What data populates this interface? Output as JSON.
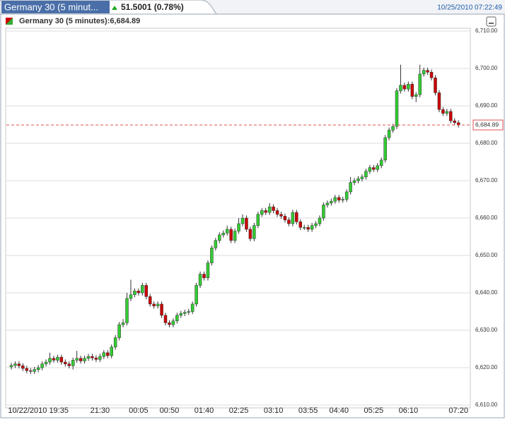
{
  "header": {
    "tab_title": "Germany 30 (5 minut...",
    "change": "51.5001 (0.78%)",
    "timestamp": "10/25/2010 07:22:49"
  },
  "chart_data": {
    "type": "candlestick",
    "title": "Germany 30 (5 minutes):6,684.89",
    "categories": [
      null,
      null,
      null,
      null,
      null,
      null,
      null,
      "10/22/2010 19:35",
      null,
      null,
      null,
      null,
      null,
      null,
      null,
      null,
      null,
      null,
      null,
      null,
      null,
      null,
      null,
      "21:30",
      null,
      null,
      null,
      null,
      null,
      null,
      null,
      null,
      null,
      "00:05",
      null,
      null,
      null,
      null,
      null,
      null,
      null,
      "00:50",
      null,
      null,
      null,
      null,
      null,
      null,
      null,
      null,
      "01:40",
      null,
      null,
      null,
      null,
      null,
      null,
      null,
      null,
      "02:25",
      null,
      null,
      null,
      null,
      null,
      null,
      null,
      null,
      "03:10",
      null,
      null,
      null,
      null,
      null,
      null,
      null,
      null,
      "03:55",
      null,
      null,
      null,
      null,
      null,
      null,
      null,
      "04:40",
      null,
      null,
      null,
      null,
      null,
      null,
      null,
      null,
      "05:25",
      null,
      null,
      null,
      null,
      null,
      null,
      null,
      null,
      "06:10",
      null,
      null,
      null,
      null,
      null,
      null,
      null,
      null,
      null,
      null,
      null,
      null,
      "07:20"
    ],
    "open": [
      6620.2,
      6620.6,
      6621.0,
      6620.5,
      6619.8,
      6619.2,
      6619.0,
      6619.5,
      6620.0,
      6621.0,
      6621.5,
      6622.5,
      6622.0,
      6622.8,
      6621.5,
      6621.0,
      6620.5,
      6622.0,
      6622.5,
      6621.8,
      6622.5,
      6623.0,
      6622.6,
      6622.2,
      6623.0,
      6624.0,
      6623.2,
      6625.5,
      6628.0,
      6631.5,
      6632.0,
      6638.5,
      6639.5,
      6640.5,
      6640.0,
      6642.0,
      6639.0,
      6637.0,
      6636.5,
      6637.0,
      6634.0,
      6632.0,
      6631.5,
      6632.5,
      6634.0,
      6634.5,
      6634.8,
      6635.0,
      6637.0,
      6642.0,
      6645.0,
      6644.0,
      6648.0,
      6652.0,
      6654.0,
      6655.5,
      6656.0,
      6657.0,
      6654.0,
      6656.5,
      6658.5,
      6660.0,
      6657.0,
      6654.5,
      6658.0,
      6661.0,
      6662.0,
      6661.5,
      6663.0,
      6662.0,
      6661.0,
      6660.5,
      6659.5,
      6658.5,
      6661.5,
      6659.0,
      6657.5,
      6657.5,
      6657.0,
      6658.0,
      6658.5,
      6660.0,
      6663.5,
      6664.0,
      6664.5,
      6665.5,
      6664.8,
      6665.0,
      6667.0,
      6669.5,
      6670.0,
      6670.5,
      6671.0,
      6672.5,
      6673.5,
      6673.0,
      6674.0,
      6675.5,
      6681.5,
      6683.5,
      6684.5,
      6694.0,
      6695.5,
      6694.5,
      6695.8,
      6692.5,
      6693.0,
      6698.5,
      6699.5,
      6699.0,
      6697.5,
      6693.5,
      6689.0,
      6688.0,
      6688.5,
      6686.0,
      6685.5
    ],
    "high": [
      6621.3,
      6621.7,
      6621.7,
      6621.2,
      6620.5,
      6619.9,
      6620.2,
      6620.7,
      6621.7,
      6622.2,
      6624.0,
      6623.2,
      6623.5,
      6623.5,
      6622.2,
      6621.7,
      6622.7,
      6624.5,
      6623.2,
      6623.2,
      6623.7,
      6623.7,
      6623.3,
      6623.7,
      6624.7,
      6624.7,
      6626.2,
      6628.7,
      6632.2,
      6633.0,
      6640.0,
      6643.5,
      6641.2,
      6641.2,
      6642.7,
      6642.7,
      6639.7,
      6637.7,
      6637.7,
      6637.7,
      6634.7,
      6632.7,
      6633.2,
      6634.7,
      6635.2,
      6635.5,
      6635.7,
      6637.7,
      6642.7,
      6645.7,
      6645.7,
      6648.7,
      6652.7,
      6654.7,
      6656.2,
      6656.7,
      6658.0,
      6657.7,
      6657.2,
      6660.0,
      6661.0,
      6660.7,
      6657.7,
      6658.7,
      6661.7,
      6662.7,
      6662.7,
      6664.0,
      6663.7,
      6662.7,
      6661.7,
      6661.2,
      6660.2,
      6662.2,
      6662.2,
      6659.7,
      6658.2,
      6658.2,
      6658.7,
      6659.2,
      6660.7,
      6664.2,
      6664.7,
      6665.2,
      6666.2,
      6666.2,
      6665.7,
      6667.7,
      6671.0,
      6670.7,
      6671.2,
      6671.7,
      6673.2,
      6674.2,
      6674.2,
      6674.7,
      6676.2,
      6682.2,
      6684.2,
      6685.2,
      6694.7,
      6701.0,
      6696.2,
      6696.5,
      6696.5,
      6693.7,
      6701.0,
      6700.2,
      6700.2,
      6699.7,
      6698.2,
      6694.2,
      6689.7,
      6689.2,
      6689.2,
      6686.7,
      6686.2
    ],
    "low": [
      6619.5,
      6619.9,
      6619.8,
      6619.1,
      6618.5,
      6618.3,
      6618.3,
      6618.8,
      6619.3,
      6620.3,
      6620.8,
      6621.3,
      6621.3,
      6620.8,
      6620.3,
      6619.8,
      6619.5,
      6621.3,
      6621.1,
      6621.1,
      6621.8,
      6621.9,
      6621.5,
      6621.5,
      6622.3,
      6622.5,
      6622.5,
      6624.8,
      6627.3,
      6630.8,
      6631.3,
      6637.8,
      6638.8,
      6639.3,
      6639.3,
      6638.3,
      6636.3,
      6635.8,
      6635.8,
      6633.3,
      6631.3,
      6630.8,
      6630.8,
      6631.8,
      6633.3,
      6633.8,
      6634.1,
      6634.3,
      6636.3,
      6641.3,
      6643.3,
      6643.3,
      6647.3,
      6651.3,
      6653.3,
      6654.8,
      6655.3,
      6653.3,
      6653.3,
      6655.8,
      6657.8,
      6656.3,
      6653.8,
      6653.8,
      6657.3,
      6660.3,
      6660.8,
      6660.8,
      6661.3,
      6660.3,
      6659.8,
      6658.8,
      6657.8,
      6657.8,
      6658.3,
      6656.8,
      6656.8,
      6656.3,
      6656.3,
      6657.3,
      6657.8,
      6659.3,
      6662.8,
      6663.3,
      6663.8,
      6664.1,
      6664.1,
      6664.3,
      6666.3,
      6668.8,
      6669.3,
      6669.8,
      6670.3,
      6671.8,
      6672.3,
      6672.3,
      6673.3,
      6674.8,
      6680.8,
      6682.8,
      6683.8,
      6693.3,
      6693.8,
      6693.8,
      6691.8,
      6691.0,
      6692.3,
      6697.8,
      6698.3,
      6696.8,
      6692.8,
      6688.3,
      6687.3,
      6687.3,
      6685.3,
      6684.8,
      6684.2
    ],
    "close": [
      6620.6,
      6621.0,
      6620.5,
      6619.8,
      6619.2,
      6619.0,
      6619.5,
      6620.0,
      6621.0,
      6621.5,
      6622.5,
      6622.0,
      6622.8,
      6621.5,
      6621.0,
      6620.5,
      6622.0,
      6622.5,
      6621.8,
      6622.5,
      6623.0,
      6622.6,
      6622.2,
      6623.0,
      6624.0,
      6623.2,
      6625.5,
      6628.0,
      6631.5,
      6632.0,
      6638.5,
      6639.5,
      6640.5,
      6640.0,
      6642.0,
      6639.0,
      6637.0,
      6636.5,
      6637.0,
      6634.0,
      6632.0,
      6631.5,
      6632.5,
      6634.0,
      6634.5,
      6634.8,
      6635.0,
      6637.0,
      6642.0,
      6645.0,
      6644.0,
      6648.0,
      6652.0,
      6654.0,
      6655.5,
      6656.0,
      6657.0,
      6654.0,
      6656.5,
      6658.5,
      6660.0,
      6657.0,
      6654.5,
      6658.0,
      6661.0,
      6662.0,
      6661.5,
      6663.0,
      6662.0,
      6661.0,
      6660.5,
      6659.5,
      6658.5,
      6661.5,
      6659.0,
      6657.5,
      6657.5,
      6657.0,
      6658.0,
      6658.5,
      6660.0,
      6663.5,
      6664.0,
      6664.5,
      6665.5,
      6664.8,
      6665.0,
      6667.0,
      6669.5,
      6670.0,
      6670.5,
      6671.0,
      6672.5,
      6673.5,
      6673.0,
      6674.0,
      6675.5,
      6681.5,
      6683.5,
      6684.5,
      6694.0,
      6695.5,
      6694.5,
      6695.8,
      6692.5,
      6693.0,
      6698.5,
      6699.5,
      6699.0,
      6697.5,
      6693.5,
      6689.0,
      6688.0,
      6688.5,
      6686.0,
      6685.5,
      6684.9
    ],
    "up_color": "#33cc33",
    "down_color": "#cc0000",
    "last": {
      "value": 6684.89,
      "label": "6,684.89"
    },
    "last_color": "#e05050",
    "ylim": [
      6610,
      6710
    ],
    "yticks": [
      {
        "value": 6610,
        "label": "6,610.00"
      },
      {
        "value": 6620,
        "label": "6,620.00"
      },
      {
        "value": 6630,
        "label": "6,630.00"
      },
      {
        "value": 6640,
        "label": "6,640.00"
      },
      {
        "value": 6650,
        "label": "6,650.00"
      },
      {
        "value": 6660,
        "label": "6,660.00"
      },
      {
        "value": 6670,
        "label": "6,670.00"
      },
      {
        "value": 6680,
        "label": "6,680.00"
      },
      {
        "value": 6690,
        "label": "6,690.00"
      },
      {
        "value": 6700,
        "label": "6,700.00"
      },
      {
        "value": 6710,
        "label": "6,710.00"
      }
    ],
    "grid": true
  }
}
